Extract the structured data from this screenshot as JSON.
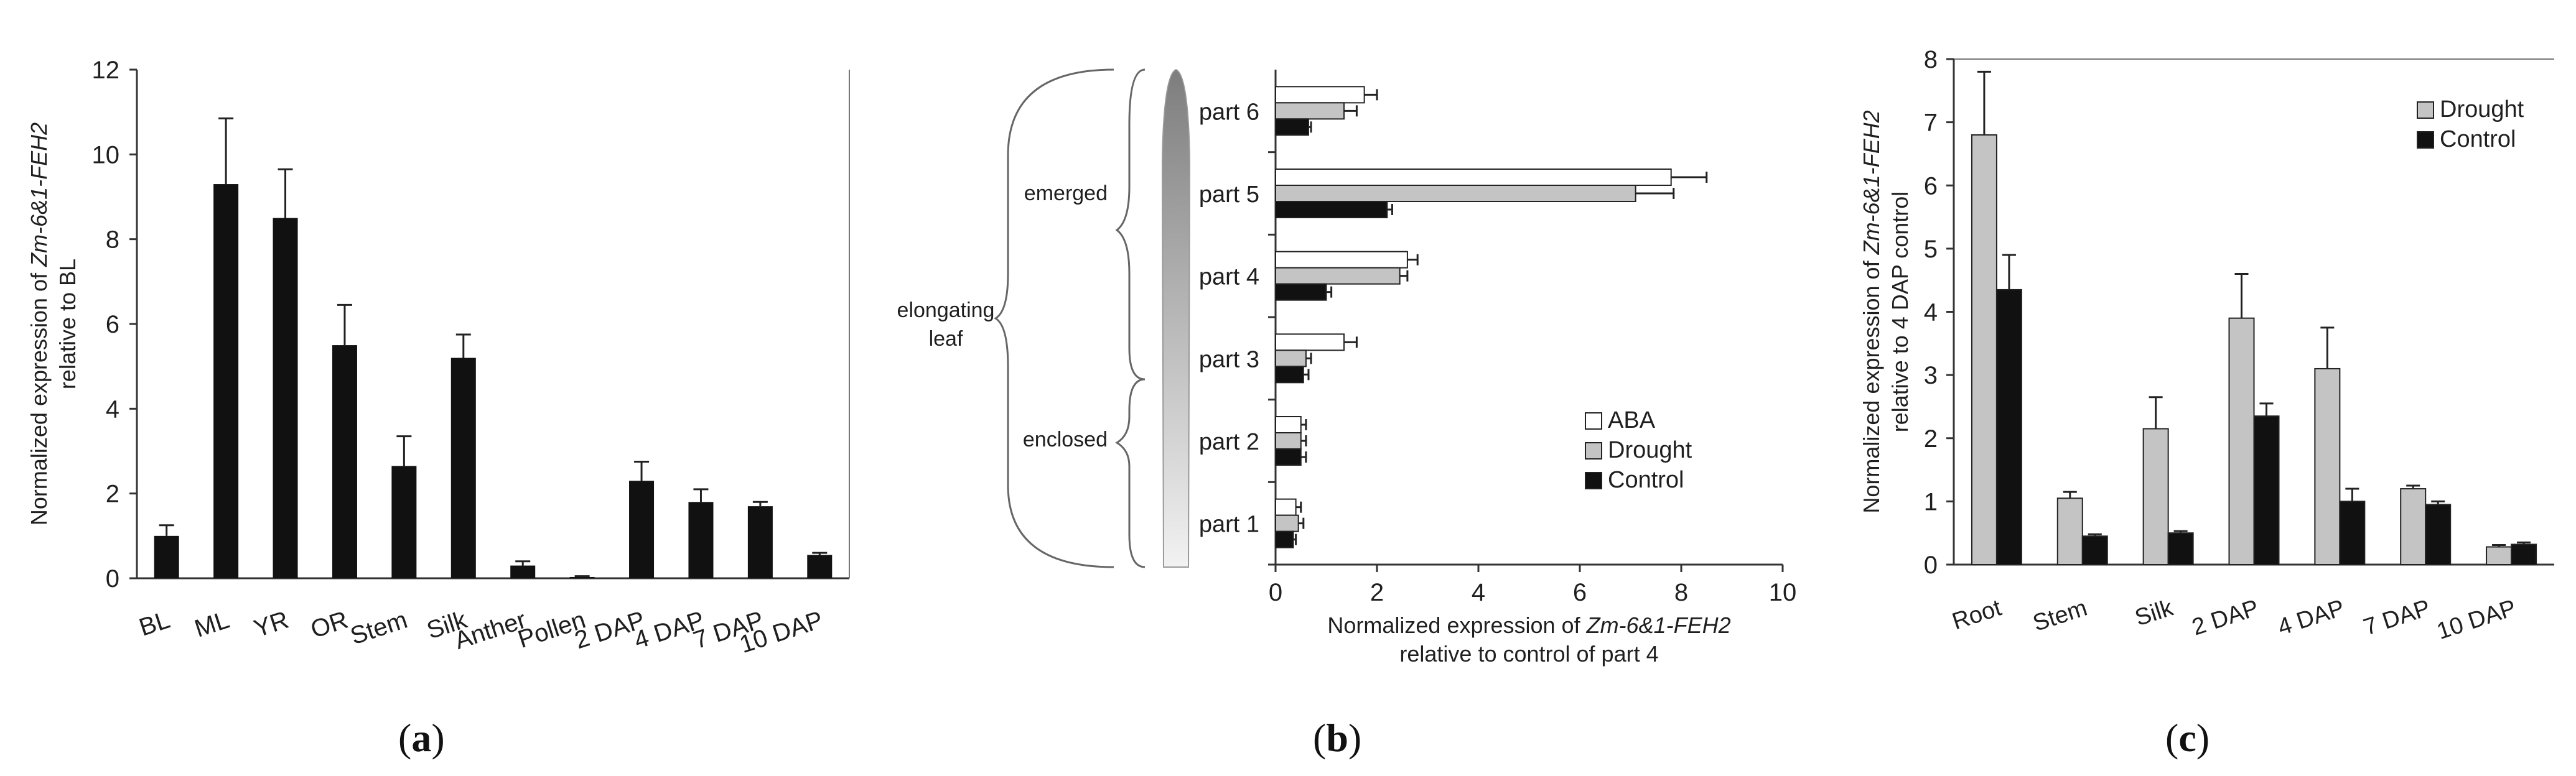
{
  "panels": [
    {
      "label_open": "(",
      "label_letter": "a",
      "label_close": ")"
    },
    {
      "label_open": "(",
      "label_letter": "b",
      "label_close": ")"
    },
    {
      "label_open": "(",
      "label_letter": "c",
      "label_close": ")"
    }
  ],
  "colors": {
    "black_bar": "#111111",
    "gray_bar": "#c4c4c4",
    "white_bar": "#ffffff",
    "axis": "#333333"
  },
  "chart_data": [
    {
      "type": "bar",
      "categories": [
        "BL",
        "ML",
        "YR",
        "OR",
        "Stem",
        "Silk",
        "Anther",
        "Pollen",
        "2 DAP",
        "4 DAP",
        "7 DAP",
        "10 DAP"
      ],
      "series": [
        {
          "values": [
            1.0,
            9.3,
            8.5,
            5.5,
            2.65,
            5.2,
            0.3,
            0.03,
            2.3,
            1.8,
            1.7,
            0.55
          ],
          "errors": [
            0.25,
            1.55,
            1.15,
            0.95,
            0.7,
            0.55,
            0.1,
            0.02,
            0.45,
            0.3,
            0.1,
            0.05
          ]
        }
      ],
      "ylabel_prefix": "Normalized expression of ",
      "ylabel_gene": "Zm-6&1-FEH2",
      "ylabel_line2": "relative to BL",
      "ylim": [
        0,
        12
      ],
      "yticks": [
        "0",
        "2",
        "4",
        "6",
        "8",
        "10",
        "12"
      ],
      "grid": false
    },
    {
      "type": "bar",
      "orientation": "horizontal",
      "categories": [
        "part 1",
        "part 2",
        "part 3",
        "part 4",
        "part 5",
        "part 6"
      ],
      "series": [
        {
          "name": "ABA",
          "values": [
            0.4,
            0.5,
            1.35,
            2.6,
            7.8,
            1.75
          ],
          "errors": [
            0.1,
            0.1,
            0.25,
            0.2,
            0.7,
            0.25
          ]
        },
        {
          "name": "Drought",
          "values": [
            0.45,
            0.5,
            0.6,
            2.45,
            7.1,
            1.35
          ],
          "errors": [
            0.1,
            0.1,
            0.1,
            0.15,
            0.75,
            0.25
          ]
        },
        {
          "name": "Control",
          "values": [
            0.35,
            0.5,
            0.55,
            1.0,
            2.2,
            0.65
          ],
          "errors": [
            0.05,
            0.1,
            0.1,
            0.1,
            0.1,
            0.05
          ]
        }
      ],
      "xlabel_prefix": "Normalized expression of ",
      "xlabel_gene": "Zm-6&1-FEH2",
      "xlabel_line2": "relative to control of part 4",
      "xlim": [
        0,
        10
      ],
      "xticks": [
        "0",
        "2",
        "4",
        "6",
        "8",
        "10"
      ],
      "annotations": {
        "emerged": "emerged",
        "enclosed": "enclosed",
        "elongating_1": "elongating",
        "elongating_2": "leaf"
      },
      "legend_position": "bottom-right"
    },
    {
      "type": "bar",
      "categories": [
        "Root",
        "Stem",
        "Silk",
        "2 DAP",
        "4 DAP",
        "7 DAP",
        "10 DAP"
      ],
      "series": [
        {
          "name": "Drought",
          "values": [
            6.8,
            1.05,
            2.15,
            3.9,
            3.1,
            1.2,
            0.28
          ],
          "errors": [
            1.0,
            0.1,
            0.5,
            0.7,
            0.65,
            0.05,
            0.03
          ]
        },
        {
          "name": "Control",
          "values": [
            4.35,
            0.45,
            0.5,
            2.35,
            1.0,
            0.95,
            0.32
          ],
          "errors": [
            0.55,
            0.03,
            0.03,
            0.2,
            0.2,
            0.05,
            0.03
          ]
        }
      ],
      "ylabel_prefix": "Normalized expression of ",
      "ylabel_gene": "Zm-6&1-FEH2",
      "ylabel_line2": "relative to 4 DAP control",
      "ylim": [
        0,
        8
      ],
      "yticks": [
        "0",
        "1",
        "2",
        "3",
        "4",
        "5",
        "6",
        "7",
        "8"
      ],
      "legend_position": "top-right"
    }
  ]
}
